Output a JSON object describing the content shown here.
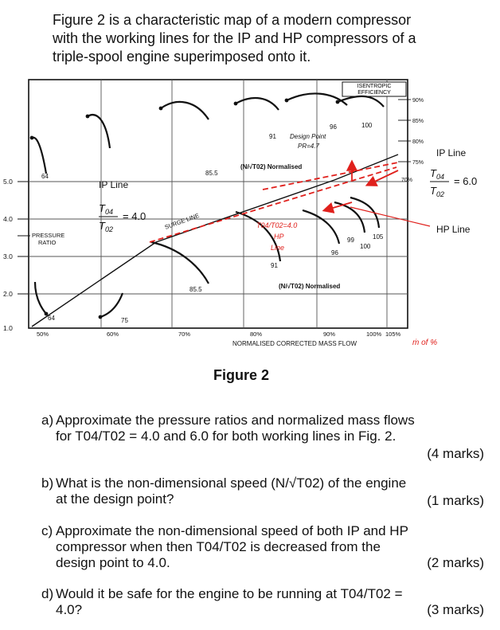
{
  "heading": {
    "lines": [
      "Figure 2 is a characteristic map of a modern compressor",
      "with the working lines for the IP and HP compressors of a",
      "triple-spool engine superimposed onto it."
    ]
  },
  "figure": {
    "caption": "Figure 2",
    "isentropic_label": [
      "ISENTROPIC",
      "EFFICIENCY"
    ],
    "efficiency_labels": [
      "90%",
      "85%",
      "80%",
      "75%",
      "70%"
    ],
    "y_axis_label": [
      "PRESSURE",
      "RATIO"
    ],
    "y_ticks": [
      "5.0",
      "4.0",
      "3.0",
      "2.0",
      "1.0"
    ],
    "x_ticks": [
      "50%",
      "60%",
      "70%",
      "80%",
      "90%",
      "100%",
      "105%"
    ],
    "x_axis_label": "NORMALISED CORRECTED MASS FLOW",
    "x_unit_note": "ṁ of %",
    "speed_labels_upper": [
      "64",
      "85.5",
      "91",
      "96",
      "100"
    ],
    "speed_labels_lower": [
      "64",
      "75",
      "85.5",
      "91",
      "96",
      "99",
      "100",
      "105"
    ],
    "upper_speed_title": "(N/√T02) Normalised",
    "lower_speed_title": "(N/√T02) Normalised",
    "surge_line_label": "SURGE LINE",
    "design_point_note": [
      "Design Point",
      "PR=4.7"
    ],
    "hp_note": [
      "T04/T02=4.0",
      "HP",
      "Line"
    ],
    "ip_line_label": "IP Line",
    "ip_ratio_value": "= 4.0",
    "right_ip_label": "IP Line",
    "right_ratio_value": "= 6.0",
    "right_hp_label": "HP Line"
  },
  "questions": [
    {
      "letter": "a)",
      "lines": [
        "Approximate the pressure ratios and normalized mass flows",
        "for T04/T02 = 4.0 and 6.0 for both working lines in Fig. 2."
      ],
      "marks": "(4 marks)"
    },
    {
      "letter": "b)",
      "lines": [
        "What is the non-dimensional speed (N/√T02) of the engine",
        "at the design point?"
      ],
      "marks": "(1 marks)"
    },
    {
      "letter": "c)",
      "lines": [
        "Approximate the non-dimensional speed of both IP and HP",
        "compressor when then T04/T02 is decreased from the",
        "design point to 4.0."
      ],
      "marks": "(2 marks)"
    },
    {
      "letter": "d)",
      "lines": [
        "Would it be safe for the engine to be running at T04/T02 =",
        "4.0?"
      ],
      "marks": "(3 marks)"
    }
  ],
  "colors": {
    "annotation_red": "#e0201c",
    "ink": "#111111",
    "grid": "#444444"
  }
}
